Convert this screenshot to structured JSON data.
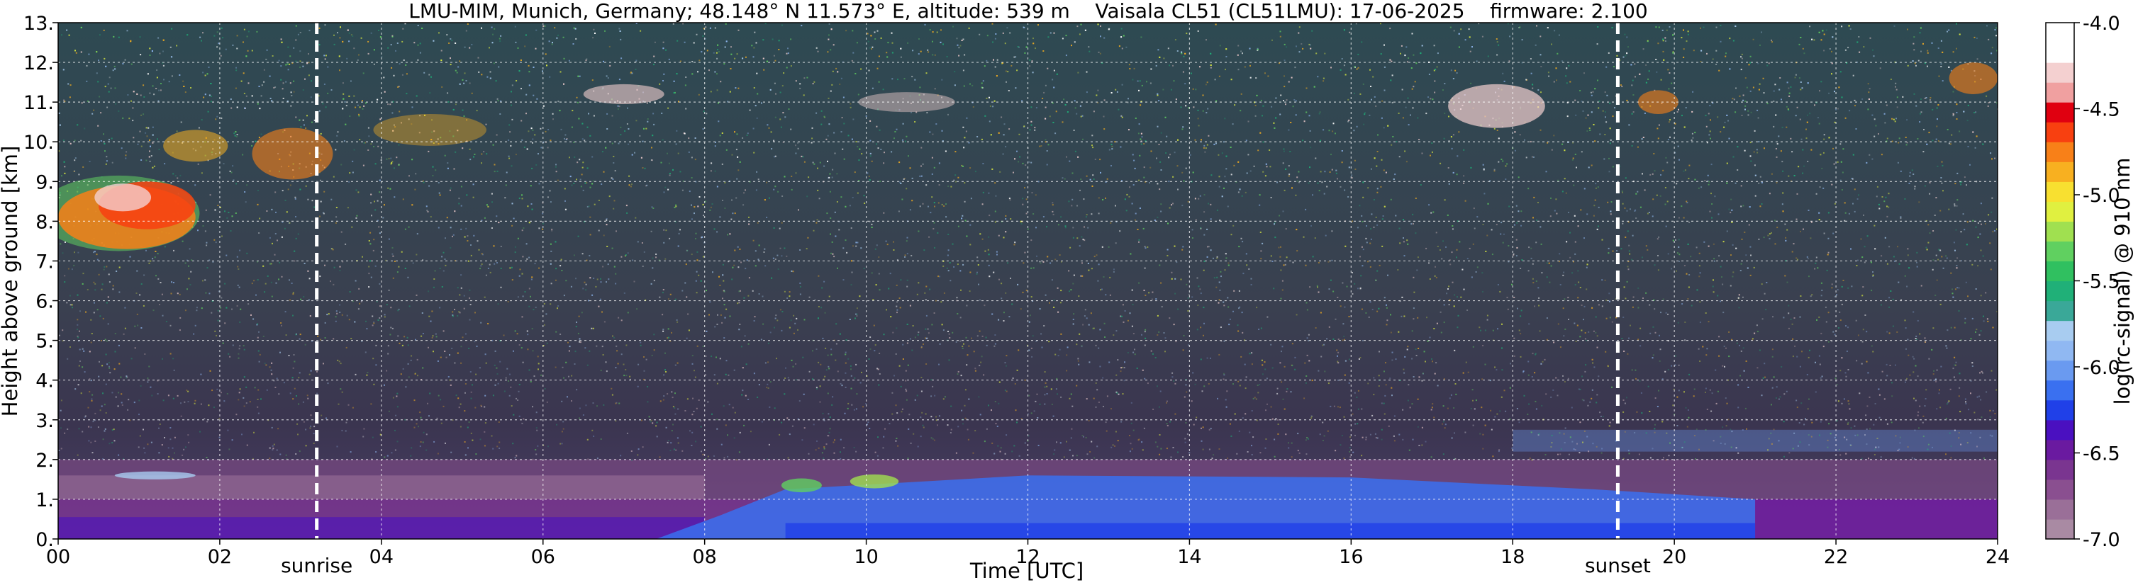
{
  "chart_data": {
    "type": "heatmap",
    "title": "LMU-MIM, Munich, Germany; 48.148° N 11.573° E, altitude: 539 m    Vaisala CL51 (CL51LMU): 17-06-2025    firmware: 2.100",
    "xlabel": "Time [UTC]",
    "ylabel": "Height above ground [km]",
    "xlim": [
      0,
      24
    ],
    "ylim": [
      0,
      13
    ],
    "x_ticks": [
      "00",
      "02",
      "04",
      "06",
      "08",
      "10",
      "12",
      "14",
      "16",
      "18",
      "20",
      "22",
      "24"
    ],
    "y_ticks": [
      "0.",
      "1.",
      "2.",
      "3.",
      "4.",
      "5.",
      "6.",
      "7.",
      "8.",
      "9.",
      "10.",
      "11.",
      "12.",
      "13."
    ],
    "grid": true,
    "colorbar": {
      "label": "log(rc-signal) @ 910 nm",
      "range": [
        -7.0,
        -4.0
      ],
      "ticks": [
        "-4.0",
        "-4.5",
        "-5.0",
        "-5.5",
        "-6.0",
        "-6.5",
        "-7.0"
      ],
      "colors": [
        "#a98aa3",
        "#9a6f98",
        "#8a4f90",
        "#7a3590",
        "#6a1aa0",
        "#4a10c0",
        "#2040e8",
        "#3a70f0",
        "#6a9af0",
        "#90b8f2",
        "#a8ccf0",
        "#3aa898",
        "#20b078",
        "#30c060",
        "#60d060",
        "#a0e050",
        "#e0f040",
        "#f8e030",
        "#f8b020",
        "#f88018",
        "#f84010",
        "#e00010",
        "#f0a0a0",
        "#f4d0d0",
        "#ffffff",
        "#ffffff"
      ]
    },
    "events": [
      {
        "label": "sunrise",
        "time": 3.2
      },
      {
        "label": "sunset",
        "time": 19.3
      }
    ],
    "features": {
      "boundary_layer_top_km": 1.6,
      "residual_layer_km": [
        1.0,
        2.0
      ],
      "high_cloud_layer_km": [
        7.0,
        10.2
      ],
      "cirrus_km": [
        10.0,
        11.8
      ]
    }
  }
}
